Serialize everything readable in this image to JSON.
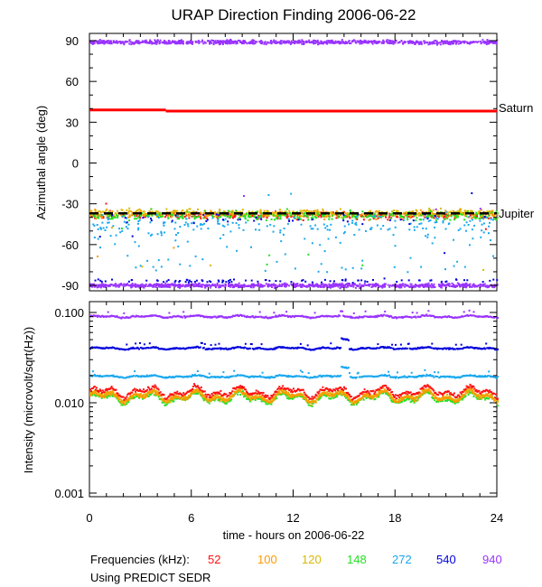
{
  "chart_data": [
    {
      "type": "scatter",
      "title": "URAP Direction Finding  2006-06-22",
      "xlabel": "",
      "ylabel": "Azimuthal angle (deg)",
      "xlim": [
        0,
        24
      ],
      "ylim": [
        -92,
        95
      ],
      "y_ticks": [
        "90",
        "60",
        "30",
        "0",
        "-30",
        "-60",
        "-90"
      ],
      "y_tick_values": [
        90,
        60,
        30,
        0,
        -30,
        -60,
        -90
      ],
      "reference_lines": [
        {
          "name": "Saturn",
          "color": "#ff0000",
          "y_start": 39,
          "y_end": 38.2,
          "step_hour": 4.5
        },
        {
          "name": "Jupiter",
          "color": "#000000",
          "y": -37,
          "dashed": true
        }
      ],
      "series": [
        {
          "name": "52",
          "band_top": 90,
          "band_bottom": -90,
          "jovian_center": -38,
          "jovian_spread": 4
        },
        {
          "name": "100",
          "band_top": 90,
          "band_bottom": -90,
          "jovian_center": -37,
          "jovian_spread": 4
        },
        {
          "name": "120",
          "band_top": 90,
          "band_bottom": -90,
          "jovian_center": -36,
          "jovian_spread": 4
        },
        {
          "name": "148",
          "band_top": 90,
          "band_bottom": -90,
          "jovian_center": -38,
          "jovian_spread": 5
        },
        {
          "name": "272",
          "band_top": 90,
          "band_bottom": -90,
          "jovian_center": -45,
          "jovian_spread": 12
        },
        {
          "name": "540",
          "band_top": 90,
          "band_bottom": -90,
          "jovian_center": -40,
          "jovian_spread": 6
        },
        {
          "name": "940",
          "band_top": 90,
          "band_bottom": -90,
          "jovian_center": null,
          "jovian_spread": 0
        }
      ]
    },
    {
      "type": "scatter",
      "xlabel": "time - hours on 2006-06-22",
      "ylabel": "Intensity (microvolt/sqrt(Hz))",
      "xlim": [
        0,
        24
      ],
      "yscale": "log",
      "ylim": [
        0.001,
        0.11
      ],
      "x_ticks": [
        "0",
        "6",
        "12",
        "18",
        "24"
      ],
      "x_tick_values": [
        0,
        6,
        12,
        18,
        24
      ],
      "y_ticks": [
        "0.100",
        "0.010",
        "0.001"
      ],
      "y_tick_values": [
        0.1,
        0.01,
        0.001
      ],
      "series": [
        {
          "name": "940",
          "level": 0.092
        },
        {
          "name": "540",
          "level": 0.041
        },
        {
          "name": "272",
          "level": 0.02
        },
        {
          "name": "148",
          "level": 0.0115
        },
        {
          "name": "120",
          "level": 0.0122
        },
        {
          "name": "100",
          "level": 0.012
        },
        {
          "name": "52",
          "level": 0.0135
        }
      ]
    }
  ],
  "legend": {
    "label": "Frequencies (kHz):",
    "items": [
      {
        "value": "52",
        "color": "#ff1010"
      },
      {
        "value": "100",
        "color": "#ff9900"
      },
      {
        "value": "120",
        "color": "#d9b800"
      },
      {
        "value": "148",
        "color": "#22e022"
      },
      {
        "value": "272",
        "color": "#1aa8ee"
      },
      {
        "value": "540",
        "color": "#0000dd"
      },
      {
        "value": "940",
        "color": "#9933ff"
      }
    ]
  },
  "footnote": "Using PREDICT SEDR"
}
